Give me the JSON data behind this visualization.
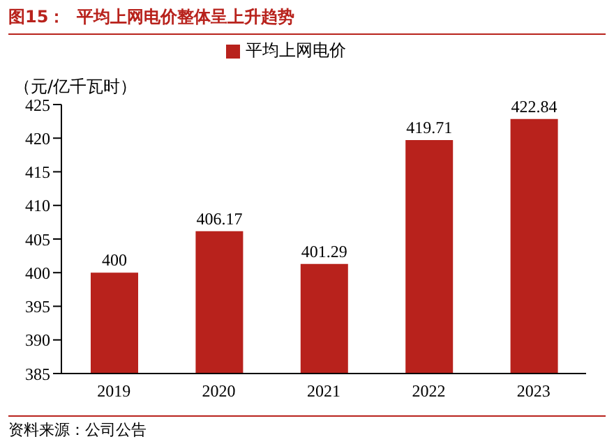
{
  "chart_data": {
    "type": "bar",
    "title": "图15：  平均上网电价整体呈上升趋势",
    "ylabel": "（元/亿千瓦时）",
    "annotations": [
      "资料来源：公司公告"
    ],
    "categories": [
      "2019",
      "2020",
      "2021",
      "2022",
      "2023"
    ],
    "series": [
      {
        "name": "平均上网电价",
        "color": "#b8221c",
        "values": [
          400,
          406.17,
          401.29,
          419.71,
          422.84
        ]
      }
    ],
    "ylim": [
      385,
      425
    ],
    "yticks": [
      385,
      390,
      395,
      400,
      405,
      410,
      415,
      420,
      425
    ],
    "data_labels": true,
    "legend": "top",
    "grid": false
  }
}
